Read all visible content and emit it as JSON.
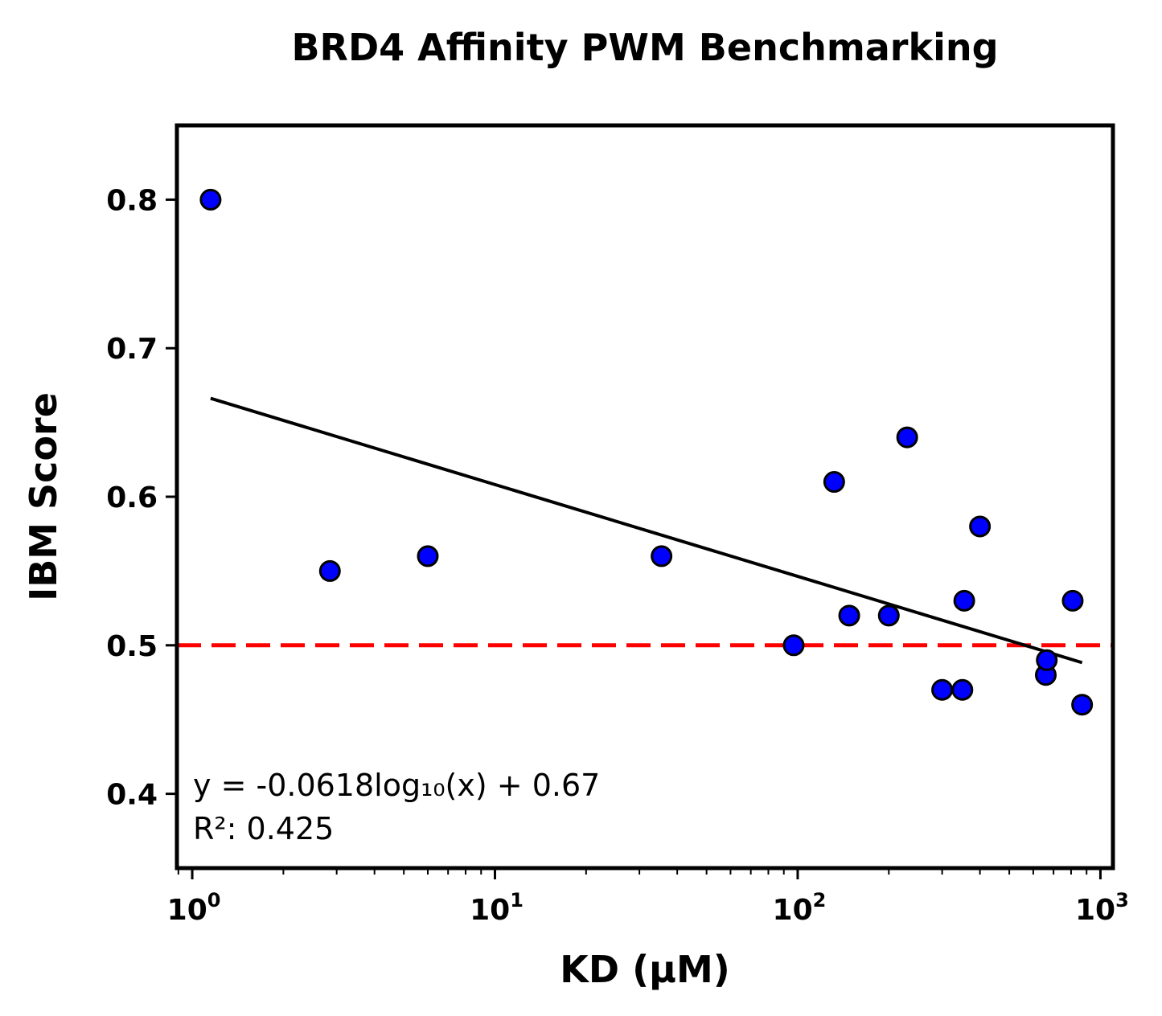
{
  "chart_data": {
    "type": "scatter",
    "title": "BRD4 Affinity PWM Benchmarking",
    "xlabel": "KD (μM)",
    "ylabel": "IBM Score",
    "xscale": "log",
    "xlim": [
      0.89,
      1100
    ],
    "ylim": [
      0.35,
      0.85
    ],
    "x_ticks": [
      {
        "value": 1,
        "base": "10",
        "exp": "0"
      },
      {
        "value": 10,
        "base": "10",
        "exp": "1"
      },
      {
        "value": 100,
        "base": "10",
        "exp": "2"
      },
      {
        "value": 1000,
        "base": "10",
        "exp": "3"
      }
    ],
    "y_ticks": [
      0.4,
      0.5,
      0.6,
      0.7,
      0.8
    ],
    "y_tick_labels": [
      "0.4",
      "0.5",
      "0.6",
      "0.7",
      "0.8"
    ],
    "grid": false,
    "points": {
      "x": [
        1.15,
        2.85,
        6.0,
        35.5,
        97.0,
        132.0,
        148.0,
        200.0,
        230.0,
        300.0,
        350.0,
        355.0,
        400.0,
        660.0,
        665.0,
        810.0,
        870.0
      ],
      "y": [
        0.8,
        0.55,
        0.56,
        0.56,
        0.5,
        0.61,
        0.52,
        0.52,
        0.64,
        0.47,
        0.47,
        0.53,
        0.58,
        0.48,
        0.49,
        0.53,
        0.46
      ],
      "color": "#0000ff",
      "edge_color": "#000000"
    },
    "fit_line": {
      "slope": -0.0618,
      "intercept": 0.67,
      "x_range": [
        1.15,
        870.0
      ],
      "color": "#000000"
    },
    "reference_line": {
      "y": 0.5,
      "style": "dashed",
      "color": "#ff0000"
    },
    "annotations": [
      "y = -0.0618log₁₀(x) + 0.67",
      "R²: 0.425"
    ]
  }
}
